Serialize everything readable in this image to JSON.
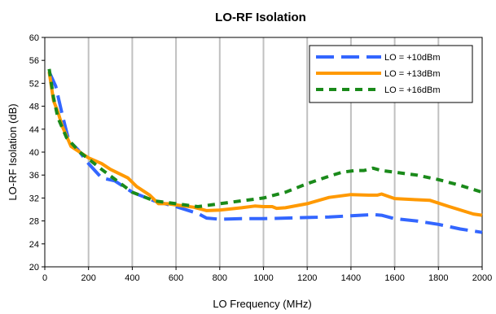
{
  "chart_data": {
    "type": "line",
    "title": "LO-RF Isolation",
    "xlabel": "LO Frequency (MHz)",
    "ylabel": "LO-RF Isolation (dB)",
    "xlim": [
      0,
      2000
    ],
    "ylim": [
      20,
      60
    ],
    "xticks": [
      "0",
      "200",
      "400",
      "600",
      "800",
      "1000",
      "1200",
      "1400",
      "1600",
      "1800",
      "2000"
    ],
    "yticks": [
      "20",
      "24",
      "28",
      "32",
      "36",
      "40",
      "44",
      "48",
      "52",
      "56",
      "60"
    ],
    "grid": "vertical",
    "legend_position": "top-right",
    "series": [
      {
        "name": "LO = +10dBm",
        "color": "#3366ff",
        "style": "long-dash",
        "x": [
          20,
          50,
          80,
          110,
          150,
          200,
          260,
          320,
          400,
          500,
          600,
          700,
          740,
          800,
          900,
          1000,
          1100,
          1200,
          1300,
          1400,
          1500,
          1540,
          1600,
          1700,
          1800,
          1900,
          2000
        ],
        "y": [
          54.0,
          51.5,
          46.5,
          42.0,
          40.5,
          38.0,
          35.5,
          35.0,
          33.0,
          31.5,
          30.5,
          29.3,
          28.5,
          28.3,
          28.4,
          28.4,
          28.5,
          28.6,
          28.7,
          28.9,
          29.1,
          29.0,
          28.4,
          28.0,
          27.4,
          26.6,
          26.0
        ]
      },
      {
        "name": "LO = +13dBm",
        "color": "#ff9900",
        "style": "solid",
        "x": [
          20,
          40,
          60,
          80,
          120,
          200,
          260,
          300,
          380,
          420,
          480,
          520,
          560,
          600,
          680,
          740,
          800,
          900,
          960,
          1000,
          1040,
          1060,
          1100,
          1200,
          1300,
          1400,
          1480,
          1520,
          1540,
          1600,
          1700,
          1760,
          1850,
          1960,
          2000
        ],
        "y": [
          54.0,
          49.0,
          47.0,
          44.5,
          41.0,
          39.0,
          38.0,
          37.0,
          35.5,
          34.0,
          32.5,
          31.0,
          31.0,
          30.8,
          30.4,
          29.8,
          29.9,
          30.3,
          30.6,
          30.5,
          30.5,
          30.2,
          30.3,
          31.0,
          32.1,
          32.6,
          32.5,
          32.5,
          32.7,
          31.9,
          31.7,
          31.6,
          30.5,
          29.2,
          29.0
        ]
      },
      {
        "name": "LO = +16dBm",
        "color": "#1a8a1a",
        "style": "dash",
        "x": [
          20,
          40,
          60,
          100,
          160,
          260,
          400,
          500,
          600,
          700,
          760,
          800,
          900,
          1000,
          1100,
          1200,
          1300,
          1360,
          1420,
          1460,
          1500,
          1540,
          1600,
          1700,
          1800,
          1900,
          2000
        ],
        "y": [
          54.5,
          49.5,
          46.0,
          42.5,
          40.0,
          37.0,
          33.0,
          31.5,
          31.0,
          30.5,
          30.8,
          31.0,
          31.5,
          32.0,
          33.0,
          34.5,
          35.8,
          36.5,
          36.8,
          36.8,
          37.2,
          36.8,
          36.5,
          36.0,
          35.2,
          34.2,
          33.0
        ]
      }
    ]
  }
}
